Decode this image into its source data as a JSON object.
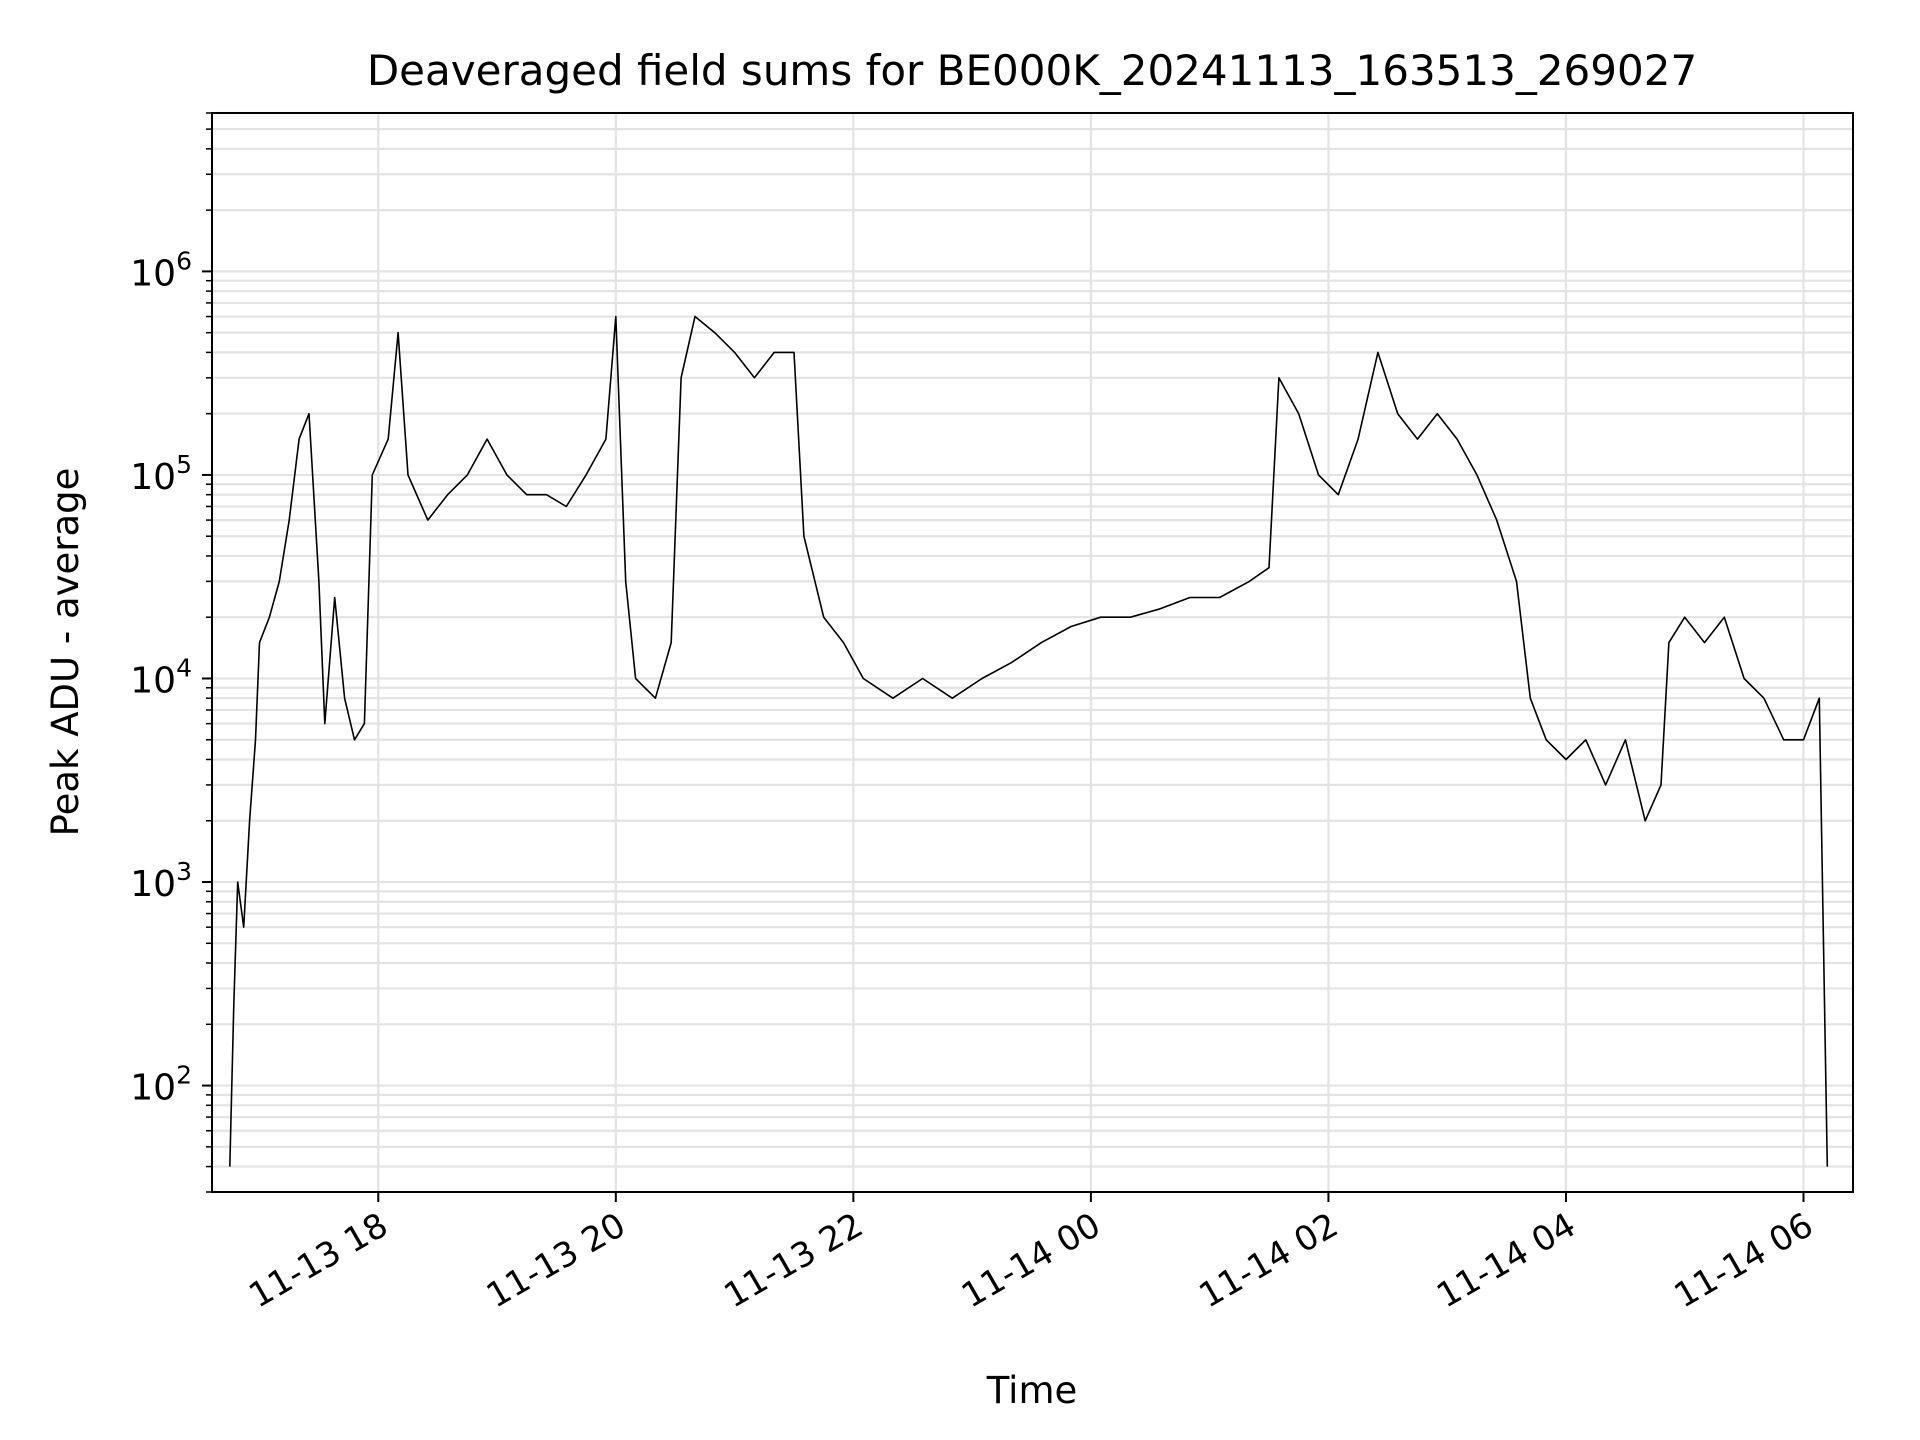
{
  "chart_data": {
    "type": "line",
    "title": "Deaveraged field sums for BE000K_20241113_163513_269027",
    "xlabel": "Time",
    "ylabel": "Peak ADU - average",
    "yscale": "log",
    "ylim": [
      30,
      6000000
    ],
    "xlim": [
      "2024-11-13 16:36",
      "2024-11-14 06:25"
    ],
    "grid": true,
    "line_color": "#000000",
    "grid_color": "#e3e3e3",
    "x_ticks": [
      {
        "label": "11-13 18",
        "value": "2024-11-13 18:00"
      },
      {
        "label": "11-13 20",
        "value": "2024-11-13 20:00"
      },
      {
        "label": "11-13 22",
        "value": "2024-11-13 22:00"
      },
      {
        "label": "11-14 00",
        "value": "2024-11-14 00:00"
      },
      {
        "label": "11-14 02",
        "value": "2024-11-14 02:00"
      },
      {
        "label": "11-14 04",
        "value": "2024-11-14 04:00"
      },
      {
        "label": "11-14 06",
        "value": "2024-11-14 06:00"
      }
    ],
    "y_ticks": [
      {
        "base": "10",
        "exp": "2",
        "value": 100
      },
      {
        "base": "10",
        "exp": "3",
        "value": 1000
      },
      {
        "base": "10",
        "exp": "4",
        "value": 10000
      },
      {
        "base": "10",
        "exp": "5",
        "value": 100000
      },
      {
        "base": "10",
        "exp": "6",
        "value": 1000000
      }
    ],
    "series": [
      {
        "points": [
          [
            "2024-11-13 16:45",
            40
          ],
          [
            "2024-11-13 16:47",
            250
          ],
          [
            "2024-11-13 16:49",
            1000
          ],
          [
            "2024-11-13 16:52",
            600
          ],
          [
            "2024-11-13 16:55",
            2000
          ],
          [
            "2024-11-13 16:58",
            5000
          ],
          [
            "2024-11-13 17:00",
            15000
          ],
          [
            "2024-11-13 17:05",
            20000
          ],
          [
            "2024-11-13 17:10",
            30000
          ],
          [
            "2024-11-13 17:15",
            60000
          ],
          [
            "2024-11-13 17:20",
            150000
          ],
          [
            "2024-11-13 17:25",
            200000
          ],
          [
            "2024-11-13 17:30",
            30000
          ],
          [
            "2024-11-13 17:33",
            6000
          ],
          [
            "2024-11-13 17:38",
            25000
          ],
          [
            "2024-11-13 17:43",
            8000
          ],
          [
            "2024-11-13 17:48",
            5000
          ],
          [
            "2024-11-13 17:53",
            6000
          ],
          [
            "2024-11-13 17:57",
            100000
          ],
          [
            "2024-11-13 18:05",
            150000
          ],
          [
            "2024-11-13 18:10",
            500000
          ],
          [
            "2024-11-13 18:15",
            100000
          ],
          [
            "2024-11-13 18:25",
            60000
          ],
          [
            "2024-11-13 18:35",
            80000
          ],
          [
            "2024-11-13 18:45",
            100000
          ],
          [
            "2024-11-13 18:55",
            150000
          ],
          [
            "2024-11-13 19:05",
            100000
          ],
          [
            "2024-11-13 19:15",
            80000
          ],
          [
            "2024-11-13 19:25",
            80000
          ],
          [
            "2024-11-13 19:35",
            70000
          ],
          [
            "2024-11-13 19:45",
            100000
          ],
          [
            "2024-11-13 19:55",
            150000
          ],
          [
            "2024-11-13 20:00",
            600000
          ],
          [
            "2024-11-13 20:05",
            30000
          ],
          [
            "2024-11-13 20:10",
            10000
          ],
          [
            "2024-11-13 20:20",
            8000
          ],
          [
            "2024-11-13 20:28",
            15000
          ],
          [
            "2024-11-13 20:33",
            300000
          ],
          [
            "2024-11-13 20:40",
            600000
          ],
          [
            "2024-11-13 20:50",
            500000
          ],
          [
            "2024-11-13 21:00",
            400000
          ],
          [
            "2024-11-13 21:10",
            300000
          ],
          [
            "2024-11-13 21:20",
            400000
          ],
          [
            "2024-11-13 21:30",
            400000
          ],
          [
            "2024-11-13 21:35",
            50000
          ],
          [
            "2024-11-13 21:45",
            20000
          ],
          [
            "2024-11-13 21:55",
            15000
          ],
          [
            "2024-11-13 22:05",
            10000
          ],
          [
            "2024-11-13 22:20",
            8000
          ],
          [
            "2024-11-13 22:35",
            10000
          ],
          [
            "2024-11-13 22:50",
            8000
          ],
          [
            "2024-11-13 23:05",
            10000
          ],
          [
            "2024-11-13 23:20",
            12000
          ],
          [
            "2024-11-13 23:35",
            15000
          ],
          [
            "2024-11-13 23:50",
            18000
          ],
          [
            "2024-11-14 00:05",
            20000
          ],
          [
            "2024-11-14 00:20",
            20000
          ],
          [
            "2024-11-14 00:35",
            22000
          ],
          [
            "2024-11-14 00:50",
            25000
          ],
          [
            "2024-11-14 01:05",
            25000
          ],
          [
            "2024-11-14 01:20",
            30000
          ],
          [
            "2024-11-14 01:30",
            35000
          ],
          [
            "2024-11-14 01:35",
            300000
          ],
          [
            "2024-11-14 01:45",
            200000
          ],
          [
            "2024-11-14 01:55",
            100000
          ],
          [
            "2024-11-14 02:05",
            80000
          ],
          [
            "2024-11-14 02:15",
            150000
          ],
          [
            "2024-11-14 02:25",
            400000
          ],
          [
            "2024-11-14 02:35",
            200000
          ],
          [
            "2024-11-14 02:45",
            150000
          ],
          [
            "2024-11-14 02:55",
            200000
          ],
          [
            "2024-11-14 03:05",
            150000
          ],
          [
            "2024-11-14 03:15",
            100000
          ],
          [
            "2024-11-14 03:25",
            60000
          ],
          [
            "2024-11-14 03:35",
            30000
          ],
          [
            "2024-11-14 03:42",
            8000
          ],
          [
            "2024-11-14 03:50",
            5000
          ],
          [
            "2024-11-14 04:00",
            4000
          ],
          [
            "2024-11-14 04:10",
            5000
          ],
          [
            "2024-11-14 04:20",
            3000
          ],
          [
            "2024-11-14 04:30",
            5000
          ],
          [
            "2024-11-14 04:40",
            2000
          ],
          [
            "2024-11-14 04:48",
            3000
          ],
          [
            "2024-11-14 04:52",
            15000
          ],
          [
            "2024-11-14 05:00",
            20000
          ],
          [
            "2024-11-14 05:10",
            15000
          ],
          [
            "2024-11-14 05:20",
            20000
          ],
          [
            "2024-11-14 05:30",
            10000
          ],
          [
            "2024-11-14 05:40",
            8000
          ],
          [
            "2024-11-14 05:50",
            5000
          ],
          [
            "2024-11-14 06:00",
            5000
          ],
          [
            "2024-11-14 06:08",
            8000
          ],
          [
            "2024-11-14 06:12",
            40
          ]
        ]
      }
    ]
  }
}
